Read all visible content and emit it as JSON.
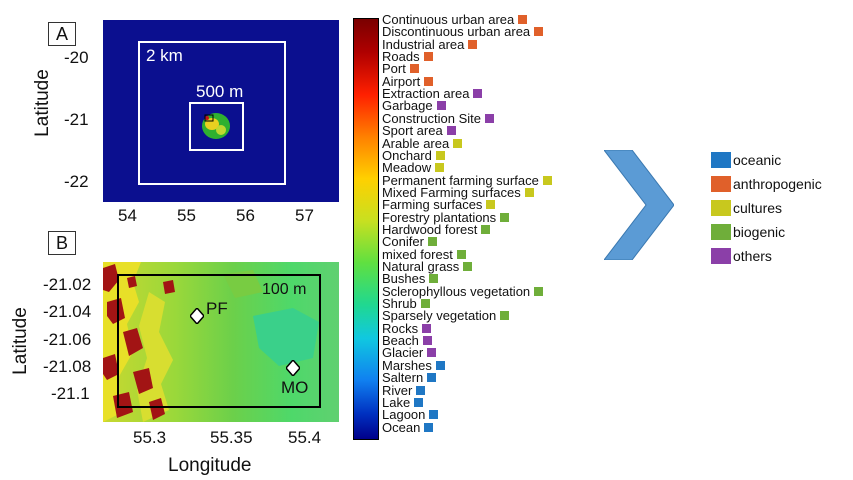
{
  "panel_a": {
    "tag": "A",
    "ylabel": "Latitude",
    "yticks": [
      "-20",
      "-21",
      "-22"
    ],
    "xticks": [
      "54",
      "55",
      "56",
      "57"
    ],
    "box_outer_label": "2 km",
    "box_inner_label": "500 m"
  },
  "panel_b": {
    "tag": "B",
    "ylabel": "Latitude",
    "xlabel": "Longitude",
    "yticks": [
      "-21.02",
      "-21.04",
      "-21.06",
      "-21.08",
      "-21.1"
    ],
    "xticks": [
      "55.3",
      "55.35",
      "55.4"
    ],
    "box_label": "100 m",
    "stations": [
      {
        "label": "PF"
      },
      {
        "label": "MO"
      }
    ]
  },
  "legend_items": [
    {
      "label": "Continuous urban area",
      "group": "anthropogenic"
    },
    {
      "label": "Discontinuous urban area",
      "group": "anthropogenic"
    },
    {
      "label": "Industrial area",
      "group": "anthropogenic"
    },
    {
      "label": "Roads",
      "group": "anthropogenic"
    },
    {
      "label": "Port",
      "group": "anthropogenic"
    },
    {
      "label": "Airport",
      "group": "anthropogenic"
    },
    {
      "label": "Extraction area",
      "group": "others"
    },
    {
      "label": "Garbage",
      "group": "others"
    },
    {
      "label": "Construction Site",
      "group": "others"
    },
    {
      "label": "Sport area",
      "group": "others"
    },
    {
      "label": "Arable area",
      "group": "cultures"
    },
    {
      "label": "Onchard",
      "group": "cultures"
    },
    {
      "label": "Meadow",
      "group": "cultures"
    },
    {
      "label": "Permanent farming surface",
      "group": "cultures"
    },
    {
      "label": "Mixed Farming surfaces",
      "group": "cultures"
    },
    {
      "label": "Farming surfaces",
      "group": "cultures"
    },
    {
      "label": "Forestry plantations",
      "group": "biogenic"
    },
    {
      "label": "Hardwood forest",
      "group": "biogenic"
    },
    {
      "label": "Conifer",
      "group": "biogenic"
    },
    {
      "label": "mixed forest",
      "group": "biogenic"
    },
    {
      "label": "Natural grass",
      "group": "biogenic"
    },
    {
      "label": "Bushes",
      "group": "biogenic"
    },
    {
      "label": "Sclerophyllous vegetation",
      "group": "biogenic"
    },
    {
      "label": "Shrub",
      "group": "biogenic"
    },
    {
      "label": "Sparsely vegetation",
      "group": "biogenic"
    },
    {
      "label": "Rocks",
      "group": "others"
    },
    {
      "label": "Beach",
      "group": "others"
    },
    {
      "label": "Glacier",
      "group": "others"
    },
    {
      "label": "Marshes",
      "group": "oceanic"
    },
    {
      "label": "Saltern",
      "group": "oceanic"
    },
    {
      "label": "River",
      "group": "oceanic"
    },
    {
      "label": "Lake",
      "group": "oceanic"
    },
    {
      "label": "Lagoon",
      "group": "oceanic"
    },
    {
      "label": "Ocean",
      "group": "oceanic"
    }
  ],
  "categories": [
    {
      "label": "oceanic",
      "color": "#1f77c4"
    },
    {
      "label": "anthropogenic",
      "color": "#e0602a"
    },
    {
      "label": "cultures",
      "color": "#c8c81e"
    },
    {
      "label": "biogenic",
      "color": "#6fae3a"
    },
    {
      "label": "others",
      "color": "#8b3fa8"
    }
  ],
  "colors": {
    "ocean": "#0b0f8f",
    "arrow": "#5b9bd5"
  }
}
